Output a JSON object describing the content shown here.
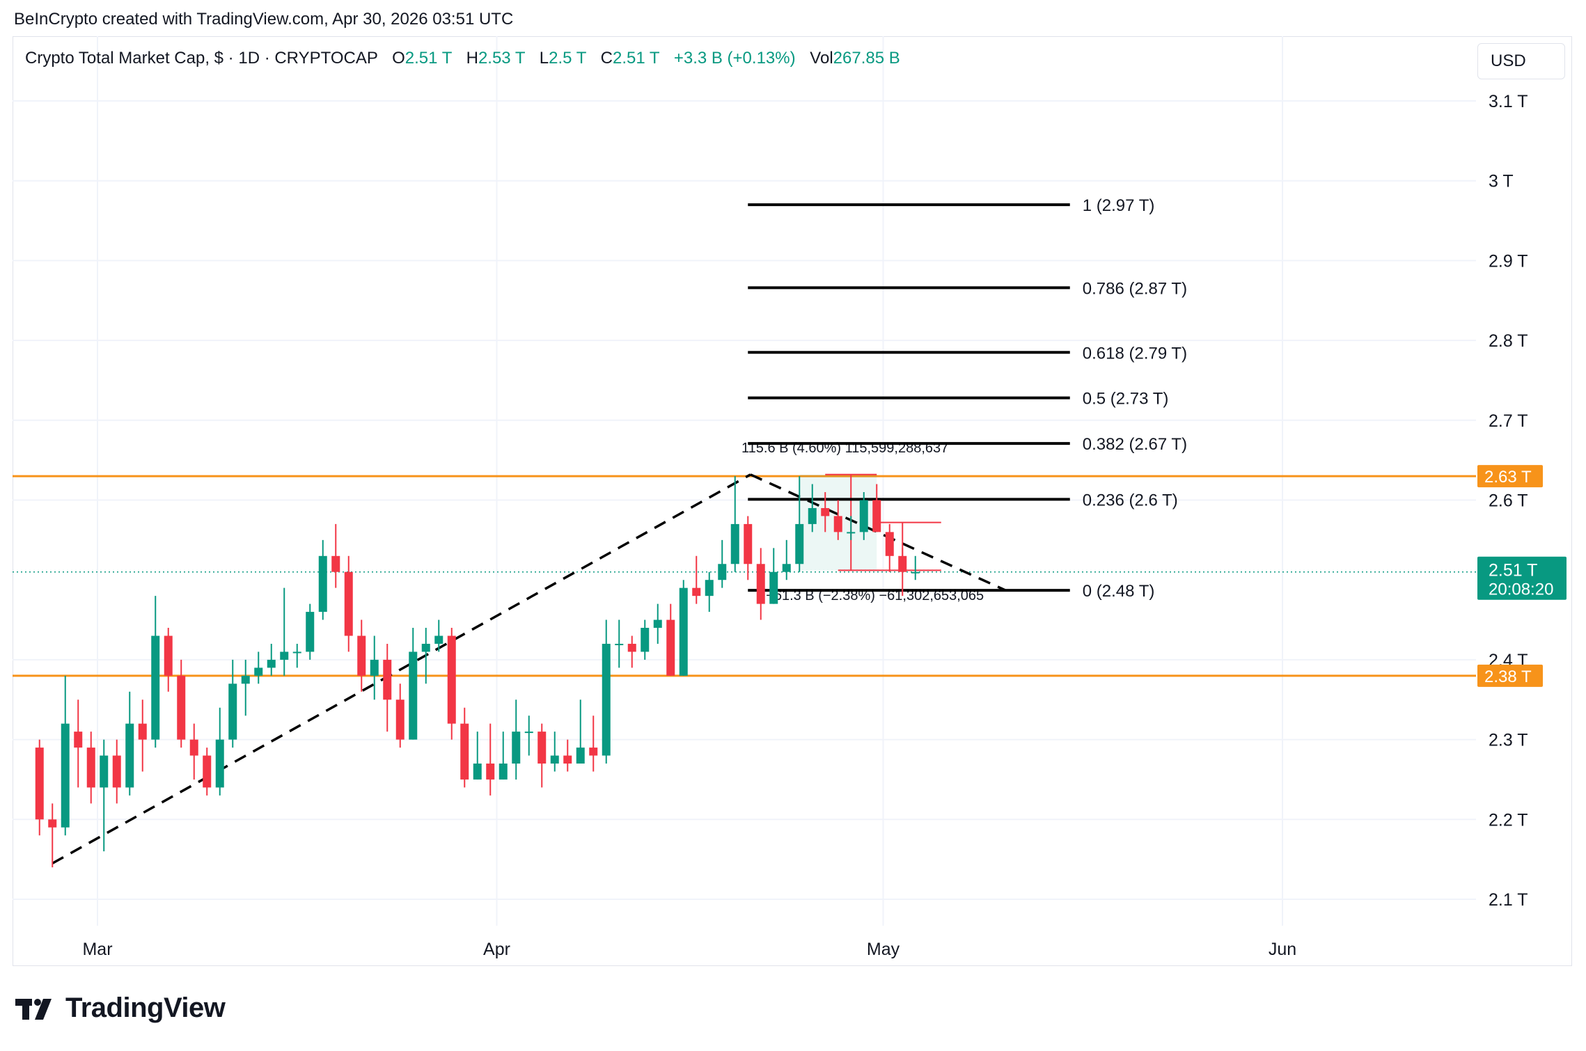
{
  "header": {
    "credit": "BeInCrypto created with TradingView.com, Apr 30, 2026 03:51 UTC"
  },
  "legend": {
    "symbol": "Crypto Total Market Cap, $ · 1D · CRYPTOCAP",
    "open_label": "O",
    "open": "2.51 T",
    "high_label": "H",
    "high": "2.53 T",
    "low_label": "L",
    "low": "2.5 T",
    "close_label": "C",
    "close": "2.51 T",
    "change": "+3.3 B (+0.13%)",
    "vol_label": "Vol",
    "vol": "267.85 B"
  },
  "currency_button": "USD",
  "brand": "TradingView",
  "colors": {
    "up": "#089981",
    "down": "#f23645",
    "level": "#f7931a",
    "fib": "#000000"
  },
  "chart_data": {
    "type": "candlestick",
    "yaxis_ticks": [
      "3.1 T",
      "3 T",
      "2.9 T",
      "2.8 T",
      "2.7 T",
      "2.6 T",
      "2.4 T",
      "2.3 T",
      "2.2 T",
      "2.1 T"
    ],
    "yaxis_tick_values": [
      3.1,
      3.0,
      2.9,
      2.8,
      2.7,
      2.6,
      2.4,
      2.3,
      2.2,
      2.1
    ],
    "ylim": [
      2.04,
      3.12
    ],
    "xaxis_ticks": [
      "Mar",
      "Apr",
      "May",
      "Jun"
    ],
    "xaxis_tick_days": [
      0,
      31,
      61,
      92
    ],
    "price_label": {
      "value": "2.51 T",
      "countdown": "20:08:20",
      "price": 2.51
    },
    "horizontal_levels": [
      {
        "label": "2.63 T",
        "value": 2.63
      },
      {
        "label": "2.38 T",
        "value": 2.38
      }
    ],
    "fib_levels": [
      {
        "label": "1 (2.97 T)",
        "value": 2.97
      },
      {
        "label": "0.786 (2.87 T)",
        "value": 2.866
      },
      {
        "label": "0.618 (2.79 T)",
        "value": 2.785
      },
      {
        "label": "0.5 (2.73 T)",
        "value": 2.728
      },
      {
        "label": "0.382 (2.67 T)",
        "value": 2.671
      },
      {
        "label": "0.236 (2.6 T)",
        "value": 2.601
      },
      {
        "label": "0 (2.48 T)",
        "value": 2.487
      }
    ],
    "measures": [
      {
        "label": "115.6 B (4.60%) 115,599,288,637"
      },
      {
        "label": "−61.3 B (−2.38%) −61,302,653,065"
      }
    ],
    "candles": [
      [
        2.29,
        2.2,
        2.3,
        2.18
      ],
      [
        2.2,
        2.19,
        2.22,
        2.14
      ],
      [
        2.19,
        2.32,
        2.38,
        2.18
      ],
      [
        2.31,
        2.29,
        2.35,
        2.24
      ],
      [
        2.29,
        2.24,
        2.31,
        2.22
      ],
      [
        2.24,
        2.28,
        2.3,
        2.16
      ],
      [
        2.28,
        2.24,
        2.3,
        2.22
      ],
      [
        2.24,
        2.32,
        2.36,
        2.23
      ],
      [
        2.32,
        2.3,
        2.35,
        2.26
      ],
      [
        2.3,
        2.43,
        2.48,
        2.29
      ],
      [
        2.43,
        2.38,
        2.44,
        2.36
      ],
      [
        2.38,
        2.3,
        2.4,
        2.29
      ],
      [
        2.3,
        2.28,
        2.32,
        2.25
      ],
      [
        2.28,
        2.24,
        2.29,
        2.23
      ],
      [
        2.24,
        2.3,
        2.34,
        2.23
      ],
      [
        2.3,
        2.37,
        2.4,
        2.29
      ],
      [
        2.37,
        2.38,
        2.4,
        2.33
      ],
      [
        2.38,
        2.39,
        2.41,
        2.37
      ],
      [
        2.39,
        2.4,
        2.42,
        2.38
      ],
      [
        2.4,
        2.41,
        2.49,
        2.38
      ],
      [
        2.41,
        2.41,
        2.42,
        2.39
      ],
      [
        2.41,
        2.46,
        2.47,
        2.4
      ],
      [
        2.46,
        2.53,
        2.55,
        2.45
      ],
      [
        2.53,
        2.51,
        2.57,
        2.49
      ],
      [
        2.51,
        2.43,
        2.53,
        2.41
      ],
      [
        2.43,
        2.38,
        2.45,
        2.36
      ],
      [
        2.38,
        2.4,
        2.43,
        2.35
      ],
      [
        2.4,
        2.35,
        2.42,
        2.31
      ],
      [
        2.35,
        2.3,
        2.37,
        2.29
      ],
      [
        2.3,
        2.41,
        2.44,
        2.3
      ],
      [
        2.41,
        2.42,
        2.44,
        2.37
      ],
      [
        2.42,
        2.43,
        2.45,
        2.41
      ],
      [
        2.43,
        2.32,
        2.44,
        2.3
      ],
      [
        2.32,
        2.25,
        2.34,
        2.24
      ],
      [
        2.25,
        2.27,
        2.31,
        2.25
      ],
      [
        2.27,
        2.25,
        2.32,
        2.23
      ],
      [
        2.25,
        2.27,
        2.31,
        2.25
      ],
      [
        2.27,
        2.31,
        2.35,
        2.25
      ],
      [
        2.31,
        2.31,
        2.33,
        2.28
      ],
      [
        2.31,
        2.27,
        2.32,
        2.24
      ],
      [
        2.27,
        2.28,
        2.31,
        2.26
      ],
      [
        2.28,
        2.27,
        2.3,
        2.26
      ],
      [
        2.27,
        2.29,
        2.35,
        2.27
      ],
      [
        2.29,
        2.28,
        2.33,
        2.26
      ],
      [
        2.28,
        2.42,
        2.45,
        2.27
      ],
      [
        2.42,
        2.42,
        2.45,
        2.39
      ],
      [
        2.42,
        2.41,
        2.43,
        2.39
      ],
      [
        2.41,
        2.44,
        2.45,
        2.4
      ],
      [
        2.44,
        2.45,
        2.47,
        2.42
      ],
      [
        2.45,
        2.38,
        2.47,
        2.38
      ],
      [
        2.38,
        2.49,
        2.5,
        2.38
      ],
      [
        2.49,
        2.48,
        2.53,
        2.47
      ],
      [
        2.48,
        2.5,
        2.51,
        2.46
      ],
      [
        2.5,
        2.52,
        2.55,
        2.49
      ],
      [
        2.52,
        2.57,
        2.63,
        2.51
      ],
      [
        2.57,
        2.52,
        2.58,
        2.5
      ],
      [
        2.52,
        2.47,
        2.54,
        2.45
      ],
      [
        2.47,
        2.51,
        2.54,
        2.47
      ],
      [
        2.51,
        2.52,
        2.55,
        2.5
      ],
      [
        2.52,
        2.57,
        2.63,
        2.51
      ],
      [
        2.57,
        2.59,
        2.62,
        2.56
      ],
      [
        2.59,
        2.58,
        2.61,
        2.56
      ],
      [
        2.58,
        2.56,
        2.6,
        2.55
      ],
      [
        2.56,
        2.56,
        2.58,
        2.55
      ],
      [
        2.56,
        2.6,
        2.61,
        2.55
      ],
      [
        2.6,
        2.56,
        2.62,
        2.56
      ],
      [
        2.56,
        2.53,
        2.57,
        2.51
      ],
      [
        2.53,
        2.51,
        2.54,
        2.48
      ],
      [
        2.51,
        2.51,
        2.53,
        2.5
      ]
    ]
  }
}
